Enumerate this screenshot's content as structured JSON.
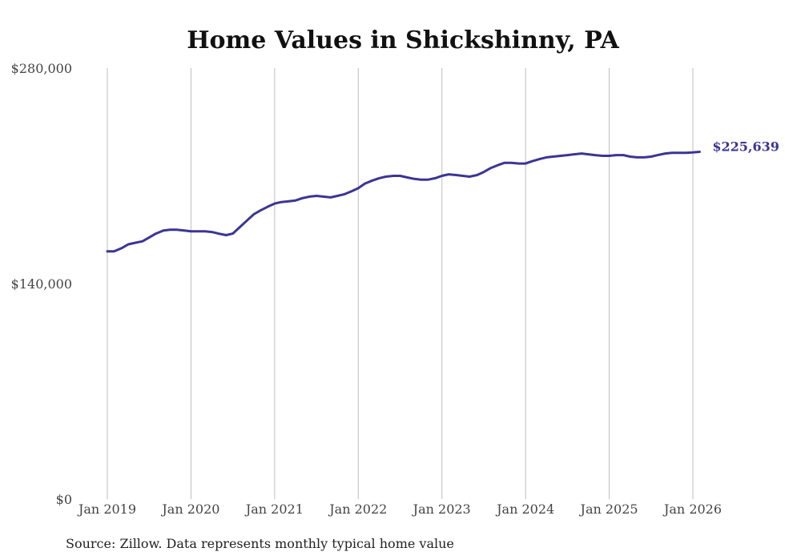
{
  "chart_data": {
    "type": "line",
    "title": "Home Values in Shickshinny, PA",
    "source": "Source: Zillow. Data represents monthly typical home value",
    "xlabel": "",
    "ylabel": "",
    "ylim": [
      0,
      280000
    ],
    "yticks": [
      {
        "value": 0,
        "label": "$0"
      },
      {
        "value": 140000,
        "label": "$140,000"
      },
      {
        "value": 280000,
        "label": "$280,000"
      }
    ],
    "xlim": [
      2019.0,
      2026.0
    ],
    "xticks": [
      {
        "value": 2019,
        "label": "Jan 2019"
      },
      {
        "value": 2020,
        "label": "Jan 2020"
      },
      {
        "value": 2021,
        "label": "Jan 2021"
      },
      {
        "value": 2022,
        "label": "Jan 2022"
      },
      {
        "value": 2023,
        "label": "Jan 2023"
      },
      {
        "value": 2024,
        "label": "Jan 2024"
      },
      {
        "value": 2025,
        "label": "Jan 2025"
      },
      {
        "value": 2026,
        "label": "Jan 2026"
      }
    ],
    "grid": "vertical",
    "series": [
      {
        "name": "Typical home value",
        "color": "#3c3594",
        "end_label": "$225,639",
        "points": [
          [
            2019.0,
            161000
          ],
          [
            2019.08,
            161000
          ],
          [
            2019.17,
            163000
          ],
          [
            2019.25,
            165500
          ],
          [
            2019.33,
            166500
          ],
          [
            2019.42,
            167500
          ],
          [
            2019.5,
            170000
          ],
          [
            2019.58,
            172500
          ],
          [
            2019.67,
            174500
          ],
          [
            2019.75,
            175000
          ],
          [
            2019.83,
            175000
          ],
          [
            2019.92,
            174500
          ],
          [
            2020.0,
            174000
          ],
          [
            2020.08,
            174000
          ],
          [
            2020.17,
            174000
          ],
          [
            2020.25,
            173500
          ],
          [
            2020.33,
            172500
          ],
          [
            2020.42,
            171500
          ],
          [
            2020.5,
            172500
          ],
          [
            2020.58,
            176500
          ],
          [
            2020.67,
            181000
          ],
          [
            2020.75,
            185000
          ],
          [
            2020.83,
            187500
          ],
          [
            2020.92,
            190000
          ],
          [
            2021.0,
            192000
          ],
          [
            2021.08,
            193000
          ],
          [
            2021.17,
            193500
          ],
          [
            2021.25,
            194000
          ],
          [
            2021.33,
            195500
          ],
          [
            2021.42,
            196500
          ],
          [
            2021.5,
            197000
          ],
          [
            2021.58,
            196500
          ],
          [
            2021.67,
            196000
          ],
          [
            2021.75,
            197000
          ],
          [
            2021.83,
            198000
          ],
          [
            2021.92,
            200000
          ],
          [
            2022.0,
            202000
          ],
          [
            2022.08,
            205000
          ],
          [
            2022.17,
            207000
          ],
          [
            2022.25,
            208500
          ],
          [
            2022.33,
            209500
          ],
          [
            2022.42,
            210000
          ],
          [
            2022.5,
            210000
          ],
          [
            2022.58,
            209000
          ],
          [
            2022.67,
            208000
          ],
          [
            2022.75,
            207500
          ],
          [
            2022.83,
            207500
          ],
          [
            2022.92,
            208500
          ],
          [
            2023.0,
            210000
          ],
          [
            2023.08,
            211000
          ],
          [
            2023.17,
            210500
          ],
          [
            2023.25,
            210000
          ],
          [
            2023.33,
            209500
          ],
          [
            2023.42,
            210500
          ],
          [
            2023.5,
            212500
          ],
          [
            2023.58,
            215000
          ],
          [
            2023.67,
            217000
          ],
          [
            2023.75,
            218500
          ],
          [
            2023.83,
            218500
          ],
          [
            2023.92,
            218000
          ],
          [
            2024.0,
            218000
          ],
          [
            2024.08,
            219500
          ],
          [
            2024.17,
            221000
          ],
          [
            2024.25,
            222000
          ],
          [
            2024.33,
            222500
          ],
          [
            2024.42,
            223000
          ],
          [
            2024.5,
            223500
          ],
          [
            2024.58,
            224000
          ],
          [
            2024.67,
            224500
          ],
          [
            2024.75,
            224000
          ],
          [
            2024.83,
            223500
          ],
          [
            2024.92,
            223000
          ],
          [
            2025.0,
            223000
          ],
          [
            2025.08,
            223500
          ],
          [
            2025.17,
            223500
          ],
          [
            2025.25,
            222500
          ],
          [
            2025.33,
            222000
          ],
          [
            2025.42,
            222000
          ],
          [
            2025.5,
            222500
          ],
          [
            2025.58,
            223500
          ],
          [
            2025.67,
            224500
          ],
          [
            2025.75,
            225000
          ],
          [
            2025.83,
            225000
          ],
          [
            2025.92,
            225000
          ],
          [
            2026.0,
            225200
          ],
          [
            2026.08,
            225639
          ]
        ]
      }
    ]
  }
}
